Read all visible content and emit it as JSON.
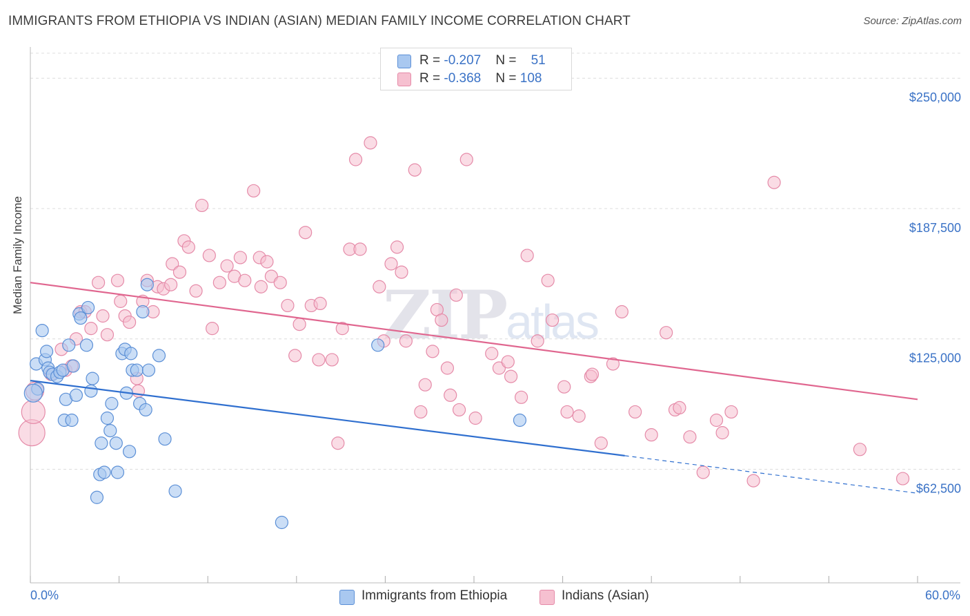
{
  "title": "IMMIGRANTS FROM ETHIOPIA VS INDIAN (ASIAN) MEDIAN FAMILY INCOME CORRELATION CHART",
  "source": "Source: ZipAtlas.com",
  "watermark": {
    "zip": "ZIP",
    "atlas": "atlas"
  },
  "legend": {
    "row1": {
      "r_label": "R = ",
      "r_value": "-0.207",
      "n_label": "N = ",
      "n_value": "51"
    },
    "row2": {
      "r_label": "R = ",
      "r_value": "-0.368",
      "n_label": "N = ",
      "n_value": "108"
    }
  },
  "colors": {
    "blue_fill": "#a9c8f0",
    "blue_stroke": "#5b8fd6",
    "blue_line": "#2f6fcf",
    "pink_fill": "#f6c0d0",
    "pink_stroke": "#e58aa8",
    "pink_line": "#e0668f",
    "axis_text": "#3a72c6",
    "grid": "#dcdcdc"
  },
  "chart_data": {
    "type": "scatter",
    "title": "IMMIGRANTS FROM ETHIOPIA VS INDIAN (ASIAN) MEDIAN FAMILY INCOME CORRELATION CHART",
    "xlabel": "",
    "ylabel": "Median Family Income",
    "xlim": [
      0,
      60
    ],
    "ylim": [
      12000,
      262000
    ],
    "x_tick_labels": [
      "0.0%",
      "60.0%"
    ],
    "y_ticks": [
      62500,
      125000,
      187500,
      250000
    ],
    "y_tick_labels": [
      "$62,500",
      "$125,000",
      "$187,500",
      "$250,000"
    ],
    "grid": true,
    "legend_position": "top-center",
    "series": [
      {
        "name": "Immigrants from Ethiopia",
        "color": "blue",
        "trend": {
          "x": [
            0,
            40.2
          ],
          "y": [
            105000,
            69000
          ],
          "dashed_to": [
            60,
            51000
          ]
        },
        "points": [
          [
            0.4,
            113000
          ],
          [
            0.5,
            101000
          ],
          [
            0.8,
            129000
          ],
          [
            1.0,
            115000
          ],
          [
            1.1,
            119000
          ],
          [
            1.2,
            111000
          ],
          [
            1.3,
            109000
          ],
          [
            1.5,
            108000
          ],
          [
            1.8,
            107000
          ],
          [
            2.0,
            109000
          ],
          [
            2.2,
            110000
          ],
          [
            2.4,
            96000
          ],
          [
            2.3,
            86000
          ],
          [
            2.6,
            122000
          ],
          [
            2.8,
            86000
          ],
          [
            2.9,
            112000
          ],
          [
            3.1,
            98000
          ],
          [
            3.3,
            137000
          ],
          [
            3.4,
            135000
          ],
          [
            3.8,
            122000
          ],
          [
            3.9,
            140000
          ],
          [
            4.1,
            100000
          ],
          [
            4.2,
            106000
          ],
          [
            4.5,
            49000
          ],
          [
            4.7,
            60000
          ],
          [
            4.8,
            75000
          ],
          [
            5.0,
            61000
          ],
          [
            5.2,
            87000
          ],
          [
            5.4,
            81000
          ],
          [
            5.5,
            94000
          ],
          [
            5.8,
            75000
          ],
          [
            5.9,
            61000
          ],
          [
            6.2,
            118000
          ],
          [
            6.4,
            120000
          ],
          [
            6.5,
            99000
          ],
          [
            6.7,
            71000
          ],
          [
            6.8,
            118000
          ],
          [
            6.9,
            110000
          ],
          [
            7.2,
            110000
          ],
          [
            7.4,
            94000
          ],
          [
            7.6,
            138000
          ],
          [
            7.8,
            91000
          ],
          [
            7.9,
            151000
          ],
          [
            8.0,
            110000
          ],
          [
            8.7,
            117000
          ],
          [
            9.1,
            77000
          ],
          [
            9.8,
            52000
          ],
          [
            17.0,
            37000
          ],
          [
            23.5,
            122000
          ],
          [
            33.1,
            86000
          ],
          [
            0.2,
            99000
          ]
        ]
      },
      {
        "name": "Indians (Asian)",
        "color": "pink",
        "trend": {
          "x": [
            0,
            60
          ],
          "y": [
            152000,
            96000
          ]
        },
        "points": [
          [
            0.1,
            80000
          ],
          [
            0.2,
            90000
          ],
          [
            0.3,
            100000
          ],
          [
            2.1,
            120000
          ],
          [
            2.4,
            110000
          ],
          [
            2.8,
            112000
          ],
          [
            3.1,
            125000
          ],
          [
            3.4,
            138000
          ],
          [
            3.7,
            138000
          ],
          [
            4.1,
            130000
          ],
          [
            4.6,
            152000
          ],
          [
            4.9,
            136000
          ],
          [
            5.2,
            127000
          ],
          [
            5.9,
            153000
          ],
          [
            6.1,
            143000
          ],
          [
            6.4,
            136000
          ],
          [
            6.7,
            133000
          ],
          [
            7.3,
            100000
          ],
          [
            7.6,
            143000
          ],
          [
            7.9,
            153000
          ],
          [
            8.3,
            138000
          ],
          [
            8.6,
            150000
          ],
          [
            9.0,
            149000
          ],
          [
            9.6,
            161000
          ],
          [
            10.1,
            157000
          ],
          [
            10.4,
            172000
          ],
          [
            10.7,
            169000
          ],
          [
            11.2,
            148000
          ],
          [
            11.6,
            189000
          ],
          [
            12.1,
            165000
          ],
          [
            12.3,
            130000
          ],
          [
            12.8,
            152000
          ],
          [
            13.3,
            160000
          ],
          [
            13.8,
            155000
          ],
          [
            14.2,
            164000
          ],
          [
            14.5,
            153000
          ],
          [
            15.1,
            196000
          ],
          [
            15.5,
            164000
          ],
          [
            16.0,
            162000
          ],
          [
            16.3,
            155000
          ],
          [
            16.9,
            152000
          ],
          [
            17.4,
            141000
          ],
          [
            17.9,
            117000
          ],
          [
            18.2,
            132000
          ],
          [
            18.6,
            176000
          ],
          [
            19.0,
            141000
          ],
          [
            19.5,
            115000
          ],
          [
            19.6,
            142000
          ],
          [
            20.4,
            115000
          ],
          [
            20.8,
            75000
          ],
          [
            21.1,
            130000
          ],
          [
            21.6,
            168000
          ],
          [
            22.0,
            211000
          ],
          [
            22.3,
            168000
          ],
          [
            23.0,
            219000
          ],
          [
            23.6,
            150000
          ],
          [
            23.9,
            124000
          ],
          [
            24.4,
            161000
          ],
          [
            24.8,
            169000
          ],
          [
            25.1,
            157000
          ],
          [
            25.4,
            124000
          ],
          [
            26.0,
            206000
          ],
          [
            26.4,
            90000
          ],
          [
            26.7,
            103000
          ],
          [
            27.2,
            119000
          ],
          [
            27.5,
            139000
          ],
          [
            27.8,
            134000
          ],
          [
            28.2,
            111000
          ],
          [
            28.4,
            98000
          ],
          [
            28.8,
            146000
          ],
          [
            29.0,
            91000
          ],
          [
            29.5,
            211000
          ],
          [
            30.1,
            87000
          ],
          [
            31.2,
            118000
          ],
          [
            31.7,
            111000
          ],
          [
            32.3,
            114000
          ],
          [
            32.5,
            107000
          ],
          [
            33.2,
            97000
          ],
          [
            33.6,
            165000
          ],
          [
            34.3,
            124000
          ],
          [
            35.0,
            153000
          ],
          [
            35.3,
            134000
          ],
          [
            36.1,
            102000
          ],
          [
            36.3,
            90000
          ],
          [
            37.1,
            88000
          ],
          [
            37.9,
            107000
          ],
          [
            38.0,
            108000
          ],
          [
            38.6,
            75000
          ],
          [
            39.4,
            113000
          ],
          [
            40.0,
            138000
          ],
          [
            40.9,
            90000
          ],
          [
            42.0,
            79000
          ],
          [
            43.0,
            128000
          ],
          [
            43.6,
            91000
          ],
          [
            43.9,
            92000
          ],
          [
            44.6,
            78000
          ],
          [
            45.5,
            61000
          ],
          [
            46.4,
            86000
          ],
          [
            46.8,
            80000
          ],
          [
            47.4,
            90000
          ],
          [
            48.9,
            57000
          ],
          [
            50.3,
            200000
          ],
          [
            56.1,
            72000
          ],
          [
            59.0,
            58000
          ],
          [
            1.4,
            108000
          ],
          [
            7.2,
            106000
          ],
          [
            9.5,
            151000
          ],
          [
            15.6,
            150000
          ]
        ]
      }
    ]
  },
  "axes": {
    "x_left": "0.0%",
    "x_right": "60.0%"
  },
  "bottom_legend": {
    "series1": "Immigrants from Ethiopia",
    "series2": "Indians (Asian)"
  }
}
